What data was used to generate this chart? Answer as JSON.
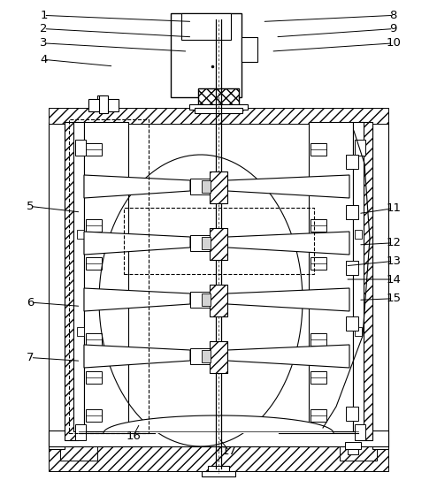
{
  "bg_color": "#ffffff",
  "line_color": "#000000",
  "figsize": [
    4.94,
    5.43
  ],
  "dpi": 100,
  "label_positions": {
    "1": [
      0.1,
      0.968,
      0.44,
      0.955
    ],
    "2": [
      0.1,
      0.94,
      0.44,
      0.923
    ],
    "3": [
      0.1,
      0.91,
      0.43,
      0.893
    ],
    "4": [
      0.1,
      0.876,
      0.26,
      0.862
    ],
    "5": [
      0.07,
      0.57,
      0.185,
      0.558
    ],
    "6": [
      0.07,
      0.37,
      0.185,
      0.362
    ],
    "7": [
      0.07,
      0.255,
      0.185,
      0.248
    ],
    "8": [
      0.9,
      0.968,
      0.6,
      0.955
    ],
    "9": [
      0.9,
      0.94,
      0.63,
      0.923
    ],
    "10": [
      0.9,
      0.91,
      0.62,
      0.893
    ],
    "11": [
      0.9,
      0.566,
      0.82,
      0.555
    ],
    "12": [
      0.9,
      0.494,
      0.82,
      0.49
    ],
    "13": [
      0.9,
      0.456,
      0.79,
      0.446
    ],
    "14": [
      0.9,
      0.418,
      0.79,
      0.418
    ],
    "15": [
      0.9,
      0.378,
      0.82,
      0.375
    ],
    "16": [
      0.305,
      0.092,
      0.32,
      0.118
    ],
    "17": [
      0.525,
      0.06,
      0.5,
      0.088
    ]
  }
}
